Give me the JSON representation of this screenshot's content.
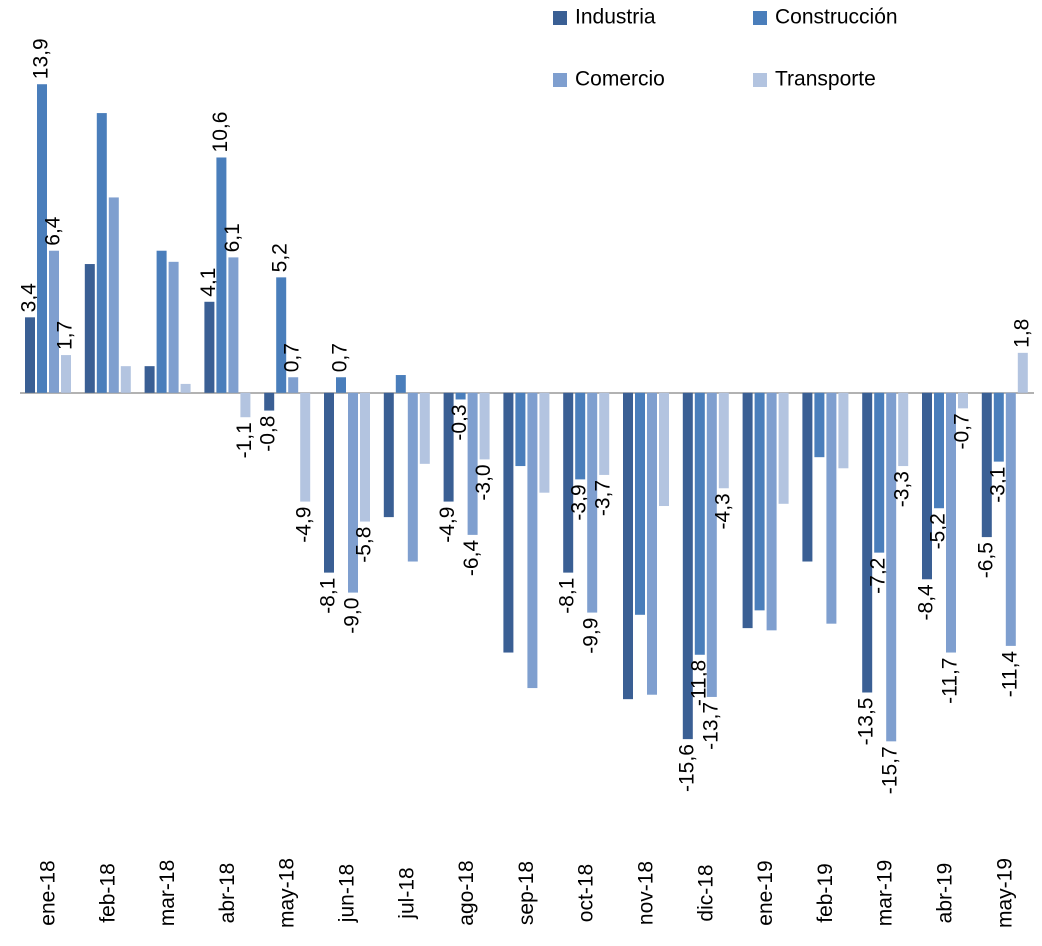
{
  "chart_data": {
    "type": "bar",
    "categories": [
      "ene-18",
      "feb-18",
      "mar-18",
      "abr-18",
      "may-18",
      "jun-18",
      "jul-18",
      "ago-18",
      "sep-18",
      "oct-18",
      "nov-18",
      "dic-18",
      "ene-19",
      "feb-19",
      "mar-19",
      "abr-19",
      "may-19"
    ],
    "series": [
      {
        "name": "Industria",
        "color": "#3a5f94",
        "values": [
          3.4,
          5.8,
          1.2,
          4.1,
          -0.8,
          -8.1,
          -5.6,
          -4.9,
          -11.7,
          -8.1,
          -13.8,
          -15.6,
          -10.6,
          -7.6,
          -13.5,
          -8.4,
          -6.5
        ],
        "value_labels": [
          "3,4",
          null,
          null,
          "4,1",
          "-0,8",
          "-8,1",
          null,
          "-4,9",
          null,
          "-8,1",
          null,
          "-15,6",
          null,
          null,
          "-13,5",
          "-8,4",
          "-6,5"
        ]
      },
      {
        "name": "Construcción",
        "color": "#4a7ebb",
        "values": [
          13.9,
          12.6,
          6.4,
          10.6,
          5.2,
          0.7,
          0.8,
          -0.3,
          -3.3,
          -3.9,
          -10.0,
          -11.8,
          -9.8,
          -2.9,
          -7.2,
          -5.2,
          -3.1
        ],
        "value_labels": [
          "13,9",
          null,
          null,
          "10,6",
          "5,2",
          "0,7",
          null,
          "-0,3",
          null,
          "-3,9",
          null,
          "-11,8",
          null,
          null,
          "-7,2",
          "-5,2",
          "-3,1"
        ]
      },
      {
        "name": "Comercio",
        "color": "#7f9fcf",
        "values": [
          6.4,
          8.8,
          5.9,
          6.1,
          0.7,
          -9.0,
          -7.6,
          -6.4,
          -13.3,
          -9.9,
          -13.6,
          -13.7,
          -10.7,
          -10.4,
          -15.7,
          -11.7,
          -11.4
        ],
        "value_labels": [
          "6,4",
          null,
          null,
          "6,1",
          "0,7",
          "-9,0",
          null,
          "-6,4",
          null,
          "-9,9",
          null,
          "-13,7",
          null,
          null,
          "-15,7",
          "-11,7",
          "-11,4"
        ]
      },
      {
        "name": "Transporte",
        "color": "#b3c4e0",
        "values": [
          1.7,
          1.2,
          0.4,
          -1.1,
          -4.9,
          -5.8,
          -3.2,
          -3.0,
          -4.5,
          -3.7,
          -5.1,
          -4.3,
          -5.0,
          -3.4,
          -3.3,
          -0.7,
          1.8
        ],
        "value_labels": [
          "1,7",
          null,
          null,
          "-1,1",
          "-4,9",
          "-5,8",
          null,
          "-3,0",
          null,
          "-3,7",
          null,
          "-4,3",
          null,
          null,
          "-3,3",
          "-0,7",
          "1,8"
        ]
      }
    ],
    "ylim": [
      -16,
      14
    ]
  }
}
